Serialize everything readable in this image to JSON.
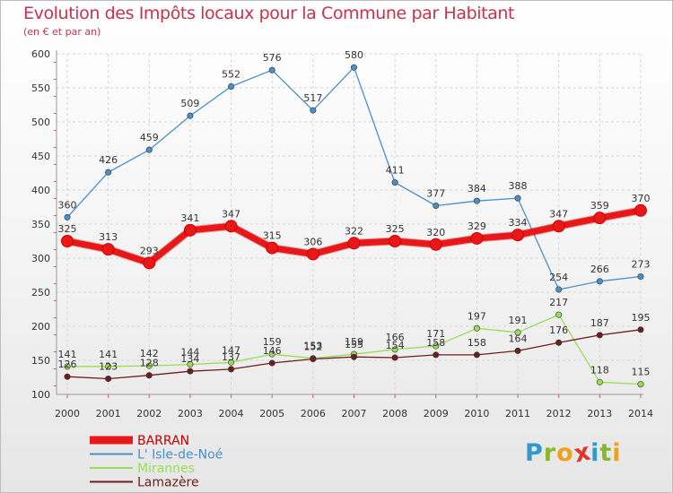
{
  "title": "Evolution des Impôts locaux pour la Commune par Habitant",
  "subtitle": "(en € et par an)",
  "logo": {
    "letters": [
      "P",
      "r",
      "o",
      "x",
      "i",
      "t",
      "i"
    ],
    "colors": [
      "#3399cc",
      "#88b830",
      "#f0a020",
      "#e2342a",
      "#3399cc",
      "#88b830",
      "#f0a020"
    ]
  },
  "chart_data": {
    "type": "line",
    "x": [
      "2000",
      "2001",
      "2002",
      "2003",
      "2004",
      "2005",
      "2006",
      "2007",
      "2008",
      "2009",
      "2010",
      "2011",
      "2012",
      "2013",
      "2014"
    ],
    "ylim": [
      100,
      600
    ],
    "yticks": [
      "100",
      "150",
      "200",
      "250",
      "300",
      "350",
      "400",
      "450",
      "500",
      "550",
      "600"
    ],
    "grid": true,
    "legend_position": "bottom-left",
    "series": [
      {
        "name": "L' Isle-de-Noé",
        "color": "#4a90c8",
        "values": [
          360,
          426,
          459,
          509,
          552,
          576,
          517,
          580,
          411,
          377,
          384,
          388,
          254,
          266,
          273
        ]
      },
      {
        "name": "Mirannes",
        "color": "#99dd55",
        "values": [
          141,
          141,
          142,
          144,
          147,
          159,
          153,
          159,
          166,
          171,
          197,
          191,
          217,
          118,
          115
        ]
      },
      {
        "name": "Lamazère",
        "color": "#6e1e1e",
        "values": [
          126,
          123,
          128,
          134,
          137,
          146,
          152,
          155,
          154,
          158,
          158,
          164,
          176,
          187,
          195
        ]
      },
      {
        "name": "BARRAN",
        "color": "#e81818",
        "values": [
          325,
          313,
          293,
          341,
          347,
          315,
          306,
          322,
          325,
          320,
          329,
          334,
          347,
          359,
          370
        ]
      }
    ]
  }
}
